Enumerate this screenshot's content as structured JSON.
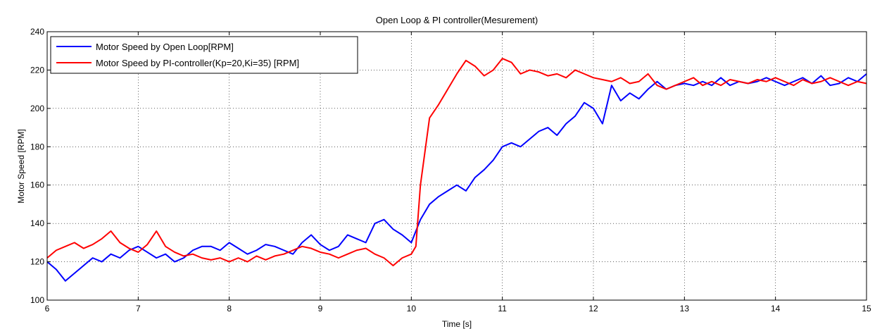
{
  "chart_data": {
    "type": "line",
    "title": "Open Loop & PI controller(Mesurement)",
    "xlabel": "Time [s]",
    "ylabel": "Motor Speed [RPM]",
    "xlim": [
      6,
      15
    ],
    "ylim": [
      100,
      240
    ],
    "xticks": [
      6,
      7,
      8,
      9,
      10,
      11,
      12,
      13,
      14,
      15
    ],
    "yticks": [
      100,
      120,
      140,
      160,
      180,
      200,
      220,
      240
    ],
    "grid": true,
    "legend_position": "top-left",
    "series": [
      {
        "name": "Motor Speed by Open Loop[RPM]",
        "color": "#0000ff",
        "x": [
          6.0,
          6.1,
          6.2,
          6.3,
          6.4,
          6.5,
          6.6,
          6.7,
          6.8,
          6.9,
          7.0,
          7.1,
          7.2,
          7.3,
          7.4,
          7.5,
          7.6,
          7.7,
          7.8,
          7.9,
          8.0,
          8.1,
          8.2,
          8.3,
          8.4,
          8.5,
          8.6,
          8.7,
          8.8,
          8.9,
          9.0,
          9.1,
          9.2,
          9.3,
          9.4,
          9.5,
          9.6,
          9.7,
          9.8,
          9.9,
          10.0,
          10.1,
          10.2,
          10.3,
          10.4,
          10.5,
          10.6,
          10.7,
          10.8,
          10.9,
          11.0,
          11.1,
          11.2,
          11.3,
          11.4,
          11.5,
          11.6,
          11.7,
          11.8,
          11.9,
          12.0,
          12.1,
          12.2,
          12.3,
          12.4,
          12.5,
          12.6,
          12.7,
          12.8,
          12.9,
          13.0,
          13.1,
          13.2,
          13.3,
          13.4,
          13.5,
          13.6,
          13.7,
          13.8,
          13.9,
          14.0,
          14.1,
          14.2,
          14.3,
          14.4,
          14.5,
          14.6,
          14.7,
          14.8,
          14.9,
          15.0
        ],
        "y": [
          120,
          116,
          110,
          114,
          118,
          122,
          120,
          124,
          122,
          126,
          128,
          125,
          122,
          124,
          120,
          122,
          126,
          128,
          128,
          126,
          130,
          127,
          124,
          126,
          129,
          128,
          126,
          124,
          130,
          134,
          129,
          126,
          128,
          134,
          132,
          130,
          140,
          142,
          137,
          134,
          130,
          142,
          150,
          154,
          157,
          160,
          157,
          164,
          168,
          173,
          180,
          182,
          180,
          184,
          188,
          190,
          186,
          192,
          196,
          203,
          200,
          192,
          212,
          204,
          208,
          205,
          210,
          214,
          210,
          212,
          213,
          212,
          214,
          212,
          216,
          212,
          214,
          213,
          214,
          216,
          214,
          212,
          214,
          216,
          213,
          217,
          212,
          213,
          216,
          214,
          218
        ]
      },
      {
        "name": "Motor Speed by PI-controller(Kp=20,Ki=35) [RPM]",
        "color": "#ff0000",
        "x": [
          6.0,
          6.1,
          6.2,
          6.3,
          6.4,
          6.5,
          6.6,
          6.7,
          6.8,
          6.9,
          7.0,
          7.1,
          7.2,
          7.3,
          7.4,
          7.5,
          7.6,
          7.7,
          7.8,
          7.9,
          8.0,
          8.1,
          8.2,
          8.3,
          8.4,
          8.5,
          8.6,
          8.7,
          8.8,
          8.9,
          9.0,
          9.1,
          9.2,
          9.3,
          9.4,
          9.5,
          9.6,
          9.7,
          9.8,
          9.9,
          10.0,
          10.05,
          10.1,
          10.2,
          10.3,
          10.4,
          10.5,
          10.6,
          10.7,
          10.8,
          10.9,
          11.0,
          11.1,
          11.2,
          11.3,
          11.4,
          11.5,
          11.6,
          11.7,
          11.8,
          11.9,
          12.0,
          12.1,
          12.2,
          12.3,
          12.4,
          12.5,
          12.6,
          12.7,
          12.8,
          12.9,
          13.0,
          13.1,
          13.2,
          13.3,
          13.4,
          13.5,
          13.6,
          13.7,
          13.8,
          13.9,
          14.0,
          14.1,
          14.2,
          14.3,
          14.4,
          14.5,
          14.6,
          14.7,
          14.8,
          14.9,
          15.0
        ],
        "y": [
          122,
          126,
          128,
          130,
          127,
          129,
          132,
          136,
          130,
          127,
          125,
          129,
          136,
          128,
          125,
          123,
          124,
          122,
          121,
          122,
          120,
          122,
          120,
          123,
          121,
          123,
          124,
          126,
          128,
          127,
          125,
          124,
          122,
          124,
          126,
          127,
          124,
          122,
          118,
          122,
          124,
          128,
          160,
          195,
          202,
          210,
          218,
          225,
          222,
          217,
          220,
          226,
          224,
          218,
          220,
          219,
          217,
          218,
          216,
          220,
          218,
          216,
          215,
          214,
          216,
          213,
          214,
          218,
          212,
          210,
          212,
          214,
          216,
          212,
          214,
          212,
          215,
          214,
          213,
          215,
          214,
          216,
          214,
          212,
          215,
          213,
          214,
          216,
          214,
          212,
          214,
          213
        ]
      }
    ]
  }
}
